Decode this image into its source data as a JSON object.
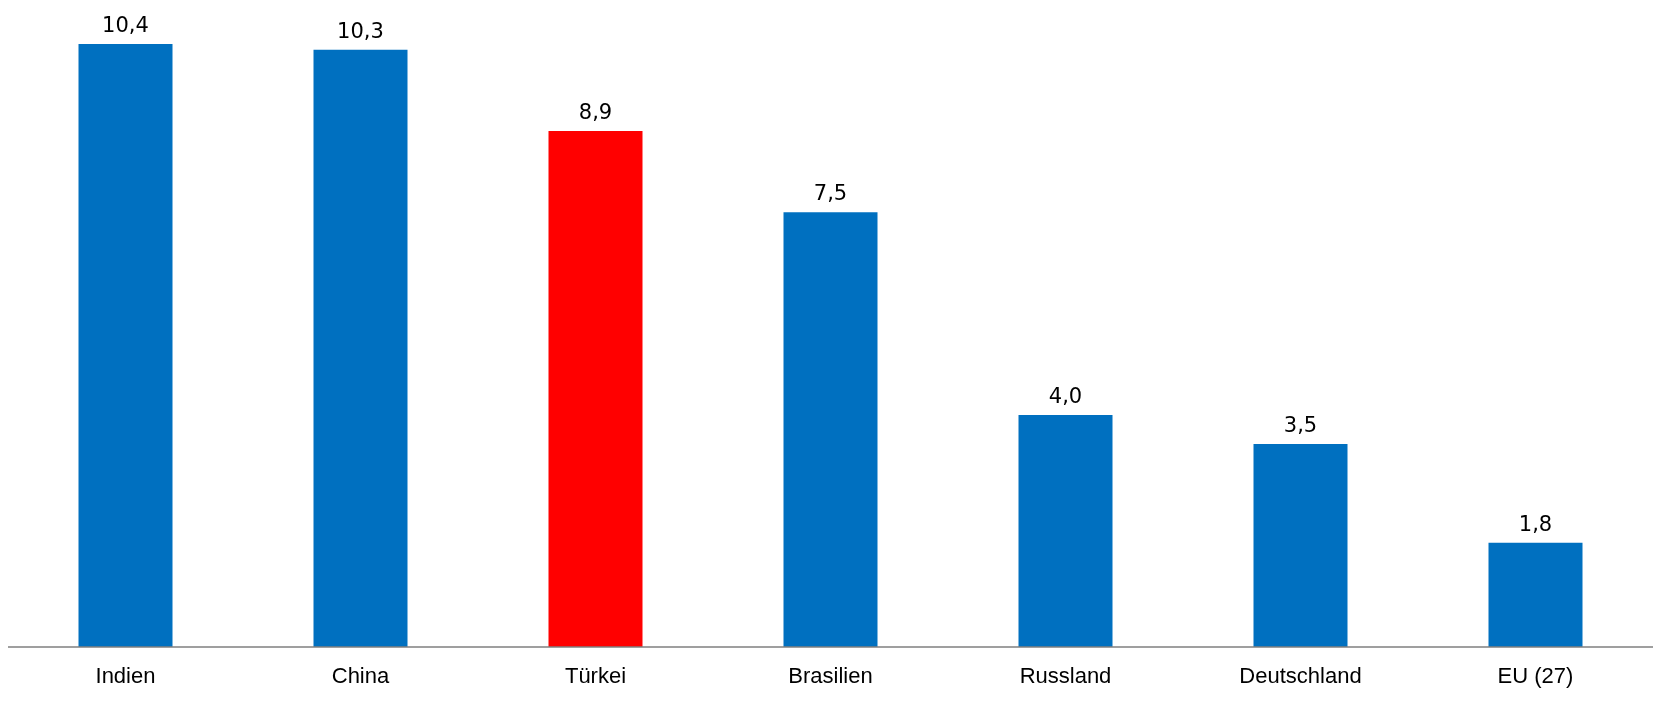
{
  "chart_data": {
    "type": "bar",
    "categories": [
      "Indien",
      "China",
      "Türkei",
      "Brasilien",
      "Russland",
      "Deutschland",
      "EU (27)"
    ],
    "values": [
      10.4,
      10.3,
      8.9,
      7.5,
      4.0,
      3.5,
      1.8
    ],
    "colors": [
      "#0070c0",
      "#0070c0",
      "#ff0000",
      "#0070c0",
      "#0070c0",
      "#0070c0",
      "#0070c0"
    ],
    "value_labels": [
      "10,4",
      "10,3",
      "8,9",
      "7,5",
      "4,0",
      "3,5",
      "1,8"
    ],
    "grid": false
  }
}
